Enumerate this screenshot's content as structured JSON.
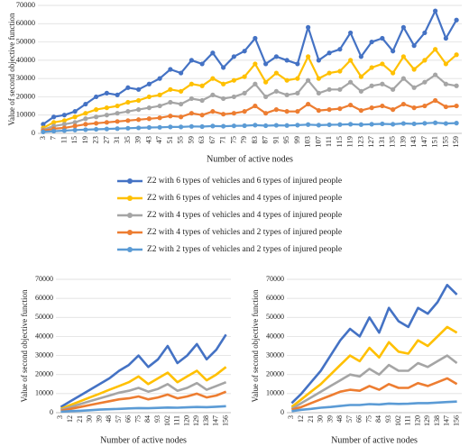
{
  "chart_data": [
    {
      "type": "line",
      "xlabel": "Number of active nodes",
      "ylabel": "Value of second objective function",
      "markers": true,
      "legend": "below",
      "categories": [
        "3",
        "7",
        "11",
        "15",
        "19",
        "23",
        "27",
        "31",
        "35",
        "39",
        "43",
        "47",
        "51",
        "55",
        "59",
        "63",
        "67",
        "71",
        "75",
        "79",
        "83",
        "87",
        "91",
        "95",
        "99",
        "103",
        "107",
        "111",
        "115",
        "119",
        "123",
        "127",
        "131",
        "135",
        "139",
        "143",
        "147",
        "151",
        "155",
        "159"
      ],
      "ylim": [
        0,
        70000
      ],
      "yticks": [
        0,
        10000,
        20000,
        30000,
        40000,
        50000,
        60000,
        70000
      ],
      "series": [
        {
          "name": "Z2 with 6 types of vehicles and 6 types of injured people",
          "color": "#4472c4",
          "values": [
            5000,
            9000,
            10000,
            12000,
            16000,
            20000,
            22000,
            21000,
            25000,
            24000,
            27000,
            30000,
            35000,
            33000,
            40000,
            38000,
            44000,
            36000,
            42000,
            45000,
            52000,
            38000,
            42000,
            40000,
            38000,
            58000,
            40000,
            44000,
            46000,
            55000,
            42000,
            50000,
            52000,
            45000,
            58000,
            48000,
            55000,
            67000,
            52000,
            62000
          ]
        },
        {
          "name": "Z2 with 6 types of vehicles and 4 types of injured people",
          "color": "#ffc000",
          "values": [
            3000,
            6000,
            7000,
            9000,
            11000,
            13000,
            14000,
            15000,
            17000,
            18000,
            20000,
            21000,
            24000,
            23000,
            27000,
            26000,
            30000,
            27000,
            29000,
            31000,
            38000,
            28000,
            33000,
            29000,
            30000,
            42000,
            30000,
            33000,
            34000,
            40000,
            31000,
            36000,
            38000,
            33000,
            42000,
            35000,
            40000,
            46000,
            38000,
            43000
          ]
        },
        {
          "name": "Z2 with 4 types of vehicles and 4 types of injured people",
          "color": "#a5a5a5",
          "values": [
            2000,
            4000,
            5000,
            6000,
            8000,
            9000,
            10000,
            11000,
            12000,
            13000,
            14000,
            15000,
            17000,
            16000,
            19000,
            18000,
            21000,
            19000,
            20000,
            22000,
            27000,
            20000,
            23000,
            21000,
            22000,
            29000,
            22000,
            24000,
            24000,
            28000,
            23000,
            26000,
            27000,
            24000,
            30000,
            25000,
            28000,
            32000,
            27000,
            26000
          ]
        },
        {
          "name": "Z2 with 4 types of vehicles and 2 types of injured people",
          "color": "#ed7d31",
          "values": [
            1500,
            2500,
            3000,
            4000,
            5000,
            5500,
            6000,
            6500,
            7000,
            7500,
            8000,
            8500,
            9500,
            9000,
            11000,
            10000,
            12000,
            10500,
            11000,
            12000,
            15000,
            11000,
            13000,
            12000,
            12000,
            16000,
            12500,
            13000,
            13500,
            15500,
            12500,
            14000,
            15000,
            13000,
            16000,
            14000,
            15000,
            18000,
            14500,
            15000
          ]
        },
        {
          "name": "Z2 with 2 types of vehicles and 2 types of injured people",
          "color": "#5b9bd5",
          "values": [
            800,
            1200,
            1500,
            1800,
            2000,
            2200,
            2400,
            2600,
            2800,
            3000,
            3200,
            3300,
            3500,
            3500,
            3800,
            3700,
            4000,
            3900,
            4100,
            4200,
            4500,
            4200,
            4400,
            4300,
            4500,
            4800,
            4500,
            4700,
            4800,
            5000,
            4800,
            5000,
            5200,
            5000,
            5400,
            5200,
            5500,
            5800,
            5400,
            5600
          ]
        }
      ]
    },
    {
      "type": "line",
      "xlabel": "Number of active nodes",
      "ylabel": "Value of second objective function",
      "markers": false,
      "categories": [
        "3",
        "12",
        "21",
        "30",
        "39",
        "48",
        "57",
        "66",
        "75",
        "84",
        "93",
        "102",
        "111",
        "120",
        "129",
        "138",
        "147",
        "156"
      ],
      "ylim": [
        0,
        70000
      ],
      "yticks": [
        0,
        10000,
        20000,
        30000,
        40000,
        50000,
        60000,
        70000
      ],
      "series": [
        {
          "color": "#4472c4",
          "values": [
            3000,
            6000,
            9000,
            12000,
            15000,
            18000,
            22000,
            25000,
            30000,
            24000,
            28000,
            35000,
            26000,
            30000,
            36000,
            28000,
            33000,
            41000
          ]
        },
        {
          "color": "#ffc000",
          "values": [
            2000,
            4000,
            6000,
            8000,
            10000,
            12000,
            14000,
            16000,
            19000,
            15000,
            18000,
            21000,
            16000,
            19000,
            22000,
            17000,
            20000,
            24000
          ]
        },
        {
          "color": "#a5a5a5",
          "values": [
            1500,
            3000,
            4500,
            6000,
            7500,
            9000,
            10500,
            11500,
            13000,
            11000,
            12500,
            15000,
            11500,
            13000,
            15500,
            12000,
            14000,
            16000
          ]
        },
        {
          "color": "#ed7d31",
          "values": [
            1000,
            2000,
            3000,
            4000,
            5000,
            6000,
            7000,
            7500,
            8500,
            7000,
            8000,
            9500,
            7500,
            8500,
            10000,
            8000,
            9000,
            11000
          ]
        },
        {
          "color": "#5b9bd5",
          "values": [
            500,
            800,
            1000,
            1300,
            1600,
            1800,
            2000,
            2200,
            2400,
            2300,
            2500,
            2700,
            2600,
            2800,
            3000,
            2900,
            3100,
            3400
          ]
        }
      ]
    },
    {
      "type": "line",
      "xlabel": "Number of active nodes",
      "ylabel": "Value of second objective function",
      "markers": false,
      "categories": [
        "3",
        "12",
        "21",
        "30",
        "39",
        "48",
        "57",
        "66",
        "75",
        "84",
        "93",
        "102",
        "111",
        "120",
        "129",
        "138",
        "147",
        "156"
      ],
      "ylim": [
        0,
        70000
      ],
      "yticks": [
        0,
        10000,
        20000,
        30000,
        40000,
        50000,
        60000,
        70000
      ],
      "series": [
        {
          "color": "#4472c4",
          "values": [
            5000,
            10000,
            16000,
            22000,
            30000,
            38000,
            44000,
            40000,
            50000,
            42000,
            55000,
            48000,
            45000,
            55000,
            52000,
            58000,
            67000,
            62000
          ]
        },
        {
          "color": "#ffc000",
          "values": [
            3000,
            7000,
            11000,
            15000,
            20000,
            25000,
            30000,
            27000,
            34000,
            29000,
            37000,
            32000,
            31000,
            38000,
            35000,
            40000,
            45000,
            42000
          ]
        },
        {
          "color": "#a5a5a5",
          "values": [
            2000,
            5000,
            8000,
            11000,
            14000,
            17000,
            20000,
            19000,
            23000,
            20000,
            25000,
            22000,
            22000,
            26000,
            24000,
            27000,
            30000,
            26000
          ]
        },
        {
          "color": "#ed7d31",
          "values": [
            1500,
            3000,
            5000,
            7000,
            9000,
            11000,
            12000,
            11500,
            14000,
            12000,
            15000,
            13000,
            13000,
            15500,
            14000,
            16000,
            18000,
            15000
          ]
        },
        {
          "color": "#5b9bd5",
          "values": [
            800,
            1500,
            2000,
            2600,
            3000,
            3500,
            4000,
            4000,
            4500,
            4300,
            4800,
            4600,
            4700,
            5000,
            5000,
            5300,
            5600,
            5800
          ]
        }
      ]
    }
  ]
}
